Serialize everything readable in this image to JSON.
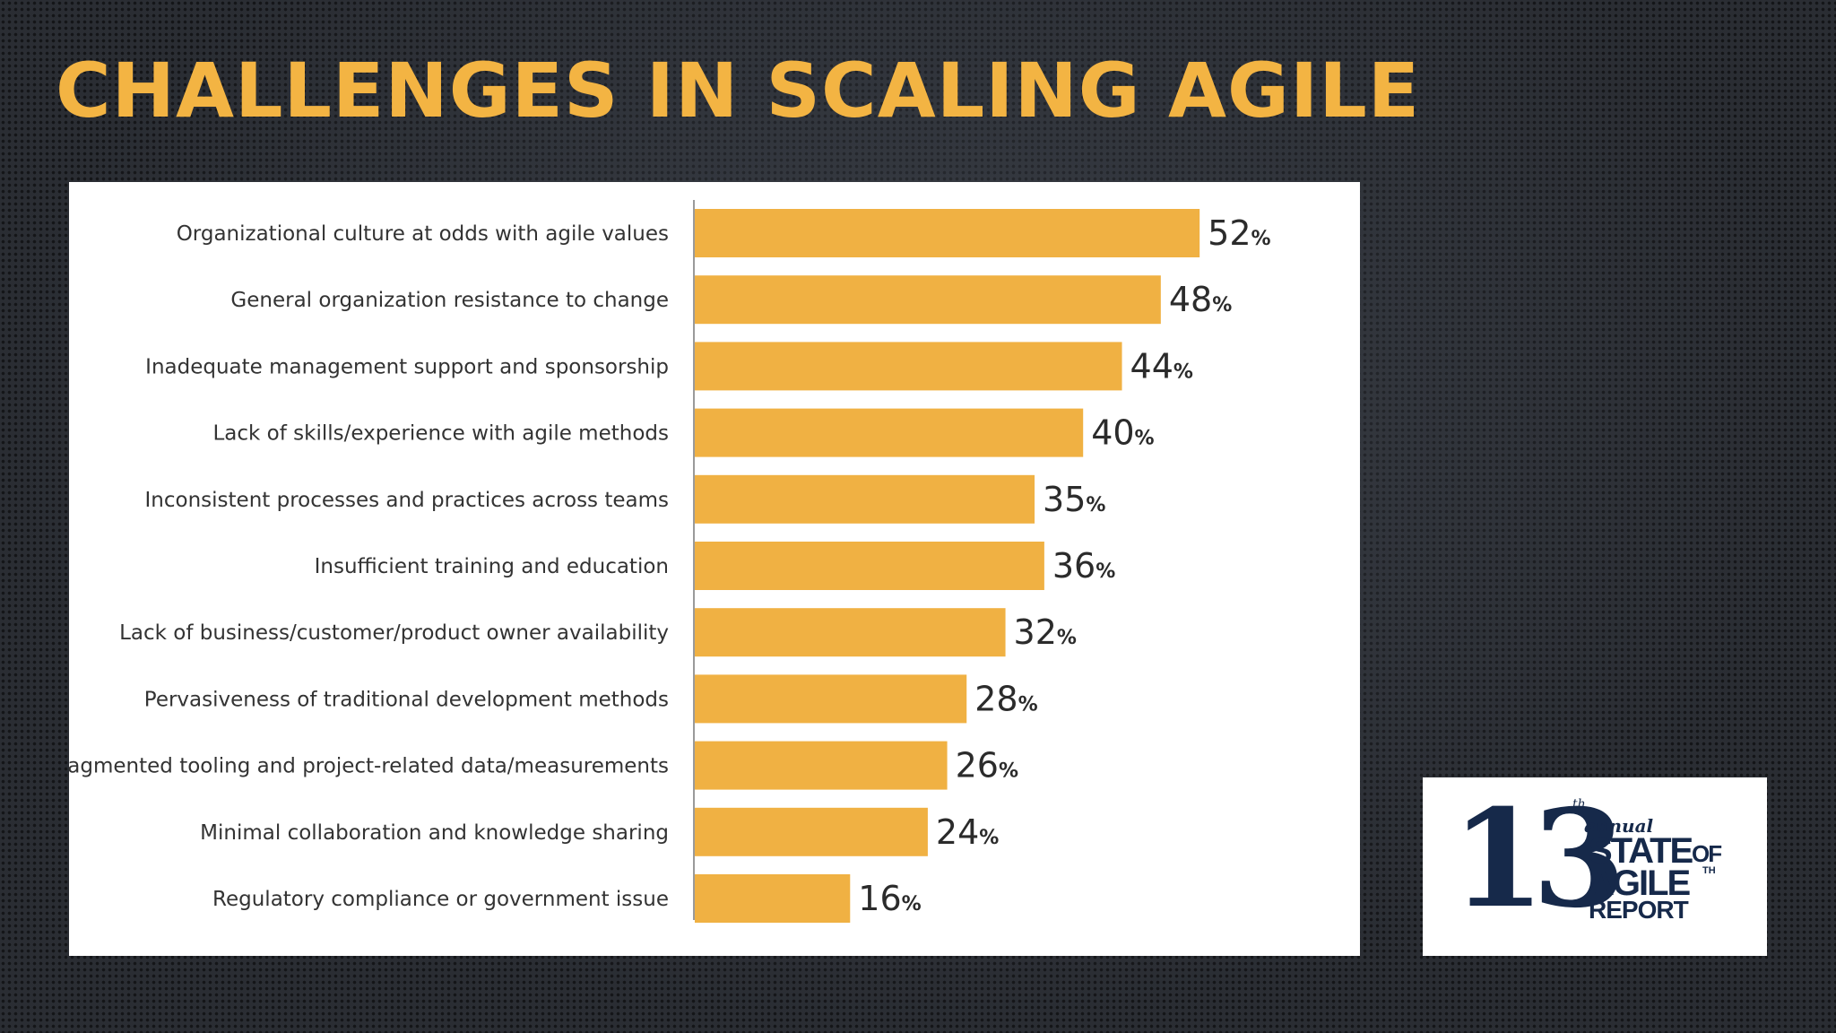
{
  "title": "CHALLENGES IN SCALING AGILE",
  "colors": {
    "title": "#f3b443",
    "bar": "#f0b143",
    "value_text": "#2b2b2b",
    "label_text": "#333333",
    "logo": "#16294a"
  },
  "chart_data": {
    "type": "bar",
    "orientation": "horizontal",
    "categories": [
      "Organizational culture at odds with agile values",
      "General organization resistance to change",
      "Inadequate management support and sponsorship",
      "Lack of skills/experience with agile methods",
      "Inconsistent processes and practices across teams",
      "Insufficient training and education",
      "Lack of business/customer/product owner availability",
      "Pervasiveness of traditional development methods",
      "Fragmented tooling and project-related data/measurements",
      "Minimal collaboration and knowledge sharing",
      "Regulatory compliance or government issue"
    ],
    "values": [
      52,
      48,
      44,
      40,
      35,
      36,
      32,
      28,
      26,
      24,
      16
    ],
    "value_labels": [
      "52",
      "48",
      "44",
      "40",
      "35",
      "36",
      "32",
      "28",
      "26",
      "24",
      "16"
    ],
    "unit": "%",
    "xlim": [
      0,
      100
    ],
    "grid": false,
    "legend": "none"
  },
  "logo": {
    "number": "13",
    "ordinal": "th",
    "annual": "annual",
    "line1": "STATE",
    "of": "OF",
    "line2": "AGILE",
    "ordinal2": "TH",
    "line3": "REPORT"
  }
}
